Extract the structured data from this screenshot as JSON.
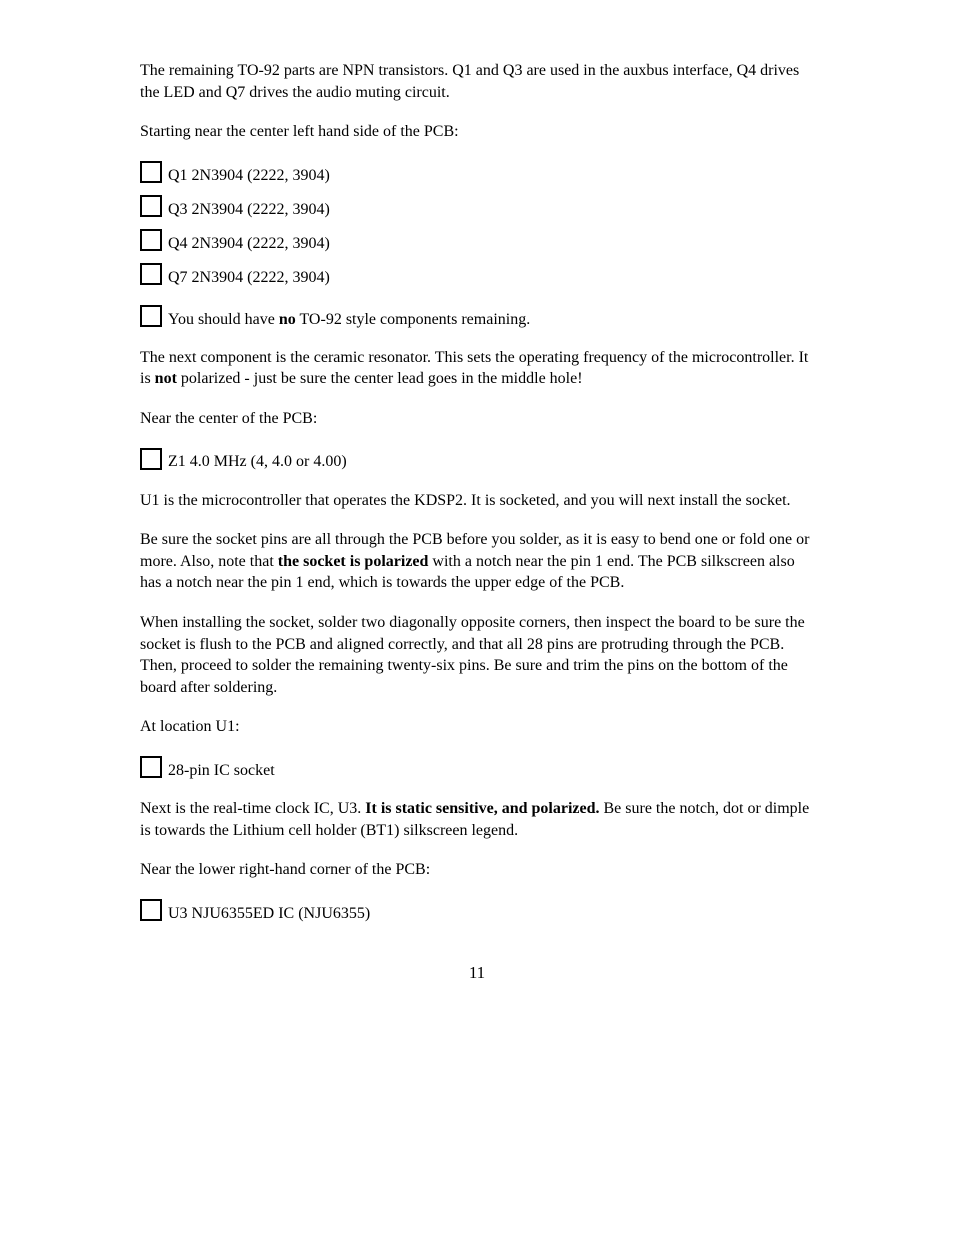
{
  "para1": "The remaining TO-92 parts are NPN transistors.  Q1 and Q3 are used in the auxbus interface, Q4 drives the LED and Q7 drives the audio muting circuit.",
  "para2": "Starting near the center left hand side of the PCB:",
  "cb1": "Q1  2N3904 (2222, 3904)",
  "cb2": "Q3  2N3904 (2222, 3904)",
  "cb3": "Q4  2N3904 (2222, 3904)",
  "cb4": "Q7  2N3904 (2222, 3904)",
  "cb5_a": "You should have ",
  "cb5_b": "no",
  "cb5_c": " TO-92 style components remaining.",
  "para3_a": "The next component is the ceramic resonator. This sets the operating frequency of the microcontroller.  It is ",
  "para3_b": "not",
  "para3_c": " polarized - just be sure the center lead goes in the middle hole!",
  "para4": "Near the center of the PCB:",
  "cb6": "Z1  4.0 MHz (4, 4.0 or 4.00)",
  "para5": "U1 is the microcontroller that operates the KDSP2.  It is socketed, and you will next install the socket.",
  "para6_a": "Be sure the socket pins are all through the PCB before you solder, as it is easy to bend one or fold one or more.  Also, note that ",
  "para6_b": "the socket is polarized",
  "para6_c": " with a notch near the pin 1 end.  The PCB silkscreen also has a notch near the pin 1 end, which is towards the upper edge of the PCB.",
  "para7": "When installing the socket, solder two diagonally opposite corners, then inspect the board to be sure the socket is flush to the PCB and aligned correctly, and that all 28 pins are protruding through the PCB.  Then, proceed to solder the remaining twenty-six pins.  Be sure and trim the pins on the bottom of the board after soldering.",
  "para8": "At location U1:",
  "cb7": "28-pin IC socket",
  "para9_a": "Next is the real-time clock IC, U3.  ",
  "para9_b": "It is static sensitive, and polarized.",
  "para9_c": "  Be sure the notch, dot or dimple is towards the Lithium cell holder (BT1) silkscreen legend.",
  "para10": "Near the lower right-hand corner of the PCB:",
  "cb8": "U3  NJU6355ED IC (NJU6355)",
  "pageNumber": "11"
}
